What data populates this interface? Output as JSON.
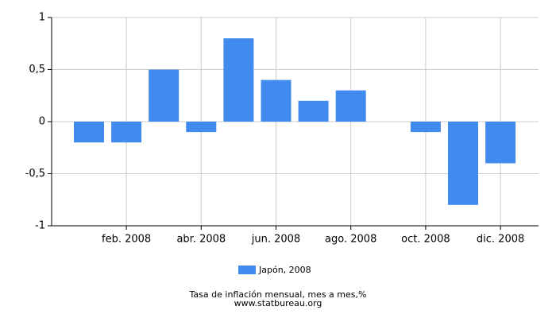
{
  "chart_data": {
    "type": "bar",
    "categories": [
      null,
      "feb. 2008",
      null,
      "abr. 2008",
      null,
      "jun. 2008",
      null,
      "ago. 2008",
      null,
      "oct. 2008",
      null,
      "dic. 2008"
    ],
    "series": [
      {
        "name": "Japón, 2008",
        "color": "#428bee",
        "values": [
          -0.2,
          -0.2,
          0.5,
          -0.1,
          0.8,
          0.4,
          0.2,
          0.3,
          0,
          -0.1,
          -0.8,
          -0.4
        ]
      }
    ],
    "ylim": [
      -1,
      1
    ],
    "yticks": [
      -1,
      {
        "value": -0.5,
        "label": "-0,5"
      },
      0,
      {
        "value": 0.5,
        "label": "0,5"
      },
      1
    ],
    "grid": true,
    "title": "Tasa de inflación mensual, mes a mes,%",
    "subtitle": "www.statbureau.org"
  }
}
